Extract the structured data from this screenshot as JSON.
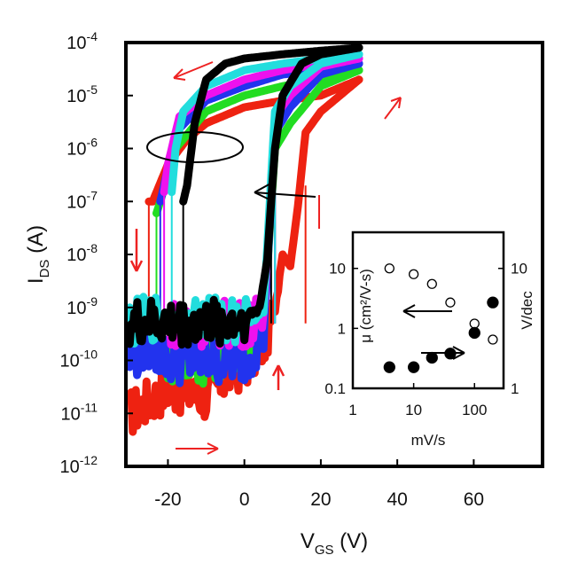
{
  "chart_data": [
    {
      "type": "line",
      "xlabel": "V",
      "xlabel_sub": "GS",
      "xlabel_unit": " (V)",
      "ylabel": "I",
      "ylabel_sub": "DS",
      "ylabel_unit": " (A)",
      "xlim": [
        -31,
        78
      ],
      "ylim_log10": [
        -12,
        -4
      ],
      "y_scale": "log",
      "xticks": [
        -20,
        0,
        20,
        40,
        60
      ],
      "xtick_labels": [
        "-20",
        "0",
        "20",
        "40",
        "60"
      ],
      "yticks_exp": [
        -4,
        -5,
        -6,
        -7,
        -8,
        -9,
        -10,
        -11,
        -12
      ],
      "ytick_base": "10",
      "yticks_labels": [
        "-4",
        "-5",
        "-6",
        "-7",
        "-8",
        "-9",
        "-10",
        "-11",
        "-12"
      ],
      "series": [
        {
          "color": "#ee2211",
          "forward": {
            "x": [
              -30,
              -20,
              -10,
              -5,
              0,
              5,
              8,
              10,
              12,
              14,
              16,
              20,
              25,
              30
            ],
            "y": [
              1e-11,
              3e-11,
              2e-11,
              5e-11,
              8e-11,
              2e-10,
              1e-09,
              1e-08,
              6e-09,
              8e-08,
              2e-06,
              5e-06,
              1e-05,
              2e-05
            ]
          },
          "reverse": {
            "x": [
              30,
              20,
              10,
              0,
              -10,
              -15,
              -20,
              -24,
              -25
            ],
            "y": [
              2e-05,
              1e-05,
              8e-06,
              6e-06,
              3e-06,
              1.5e-06,
              5e-07,
              1e-07,
              1e-07
            ]
          }
        },
        {
          "color": "#22dd22",
          "forward": {
            "x": [
              -20,
              -10,
              0,
              5,
              8,
              12,
              20,
              30
            ],
            "y": [
              1e-10,
              1e-10,
              2e-10,
              4e-10,
              1e-06,
              3e-06,
              1.5e-05,
              3e-05
            ]
          },
          "reverse": {
            "x": [
              30,
              20,
              10,
              0,
              -10,
              -18,
              -22,
              -23
            ],
            "y": [
              3e-05,
              2e-05,
              1.5e-05,
              1e-05,
              5e-06,
              1e-06,
              1e-07,
              6e-08
            ]
          }
        },
        {
          "color": "#2233ee",
          "forward": {
            "x": [
              -30,
              -25,
              -20,
              -15,
              0,
              5,
              8,
              12,
              20,
              30
            ],
            "y": [
              1e-10,
              2e-10,
              1e-10,
              1e-10,
              1e-10,
              3e-10,
              2e-06,
              6e-06,
              2.5e-05,
              4e-05
            ]
          },
          "reverse": {
            "x": [
              30,
              20,
              10,
              0,
              -10,
              -18,
              -21,
              -22
            ],
            "y": [
              4e-05,
              3e-05,
              2.5e-05,
              1.5e-05,
              8e-06,
              2e-06,
              2e-07,
              1e-07
            ]
          }
        },
        {
          "color": "#ee11ee",
          "forward": {
            "x": [
              -20,
              -10,
              0,
              5,
              8,
              12,
              20,
              30
            ],
            "y": [
              5e-10,
              5e-10,
              5e-10,
              6e-10,
              4e-06,
              1e-05,
              3.5e-05,
              5e-05
            ]
          },
          "reverse": {
            "x": [
              30,
              20,
              10,
              0,
              -10,
              -17,
              -20,
              -21
            ],
            "y": [
              5e-05,
              4e-05,
              3e-05,
              2e-05,
              1e-05,
              4e-06,
              5e-07,
              1.5e-07
            ]
          }
        },
        {
          "color": "#22dddd",
          "forward": {
            "x": [
              -30,
              -20,
              -10,
              0,
              5,
              8,
              12,
              20,
              30
            ],
            "y": [
              5e-10,
              7e-10,
              6e-10,
              6e-10,
              8e-10,
              5e-06,
              1.5e-05,
              4e-05,
              6e-05
            ]
          },
          "reverse": {
            "x": [
              30,
              20,
              10,
              0,
              -10,
              -16,
              -18,
              -19
            ],
            "y": [
              6e-05,
              5e-05,
              4e-05,
              3e-05,
              1.5e-05,
              5e-06,
              1e-06,
              1.5e-07
            ]
          }
        },
        {
          "color": "#000000",
          "forward": {
            "x": [
              -30,
              -20,
              -10,
              0,
              4,
              6,
              7,
              8,
              10,
              15,
              20,
              30
            ],
            "y": [
              5e-10,
              5e-10,
              5e-10,
              6e-10,
              1e-09,
              8e-09,
              1e-07,
              1e-06,
              1e-05,
              4e-05,
              6e-05,
              8e-05
            ]
          },
          "reverse": {
            "x": [
              30,
              20,
              10,
              0,
              -5,
              -10,
              -13,
              -15,
              -16
            ],
            "y": [
              8e-05,
              7e-05,
              6e-05,
              5e-05,
              4e-05,
              2e-05,
              3e-06,
              2e-07,
              1e-07
            ]
          }
        }
      ],
      "annotations": [
        {
          "type": "ellipse",
          "x": -15,
          "y": 1e-06
        },
        {
          "type": "ellipse",
          "x": -15,
          "y": 1e-06
        },
        {
          "type": "arrow-left",
          "x_from": 27,
          "x_to": 2,
          "y": 1.5e-07
        }
      ]
    },
    {
      "type": "scatter",
      "xlabel": "mV/s",
      "ylabel_left": "μ (cm²/V-s)",
      "ylabel_right": "V/dec",
      "x_scale": "log",
      "y_scale": "log",
      "xlim": [
        1,
        300
      ],
      "ylim": [
        0.1,
        40
      ],
      "y2lim": [
        1,
        20
      ],
      "xticks": [
        1,
        10,
        100
      ],
      "xtick_labels": [
        "1",
        "10",
        "100"
      ],
      "yticks": [
        0.1,
        1,
        10
      ],
      "ytick_labels": [
        "0.1",
        "1",
        "10"
      ],
      "y2ticks": [
        1,
        10
      ],
      "y2tick_labels": [
        "1",
        "10"
      ],
      "series": [
        {
          "marker": "open-circle",
          "axis": "left",
          "x": [
            4,
            10,
            20,
            40,
            100,
            200
          ],
          "y": [
            10,
            8,
            5.5,
            2.7,
            1.2,
            0.65
          ]
        },
        {
          "marker": "filled-circle",
          "axis": "right",
          "x": [
            4,
            10,
            20,
            40,
            100,
            200
          ],
          "y": [
            1.5,
            1.5,
            1.8,
            1.95,
            2.9,
            5.2
          ]
        }
      ]
    }
  ]
}
